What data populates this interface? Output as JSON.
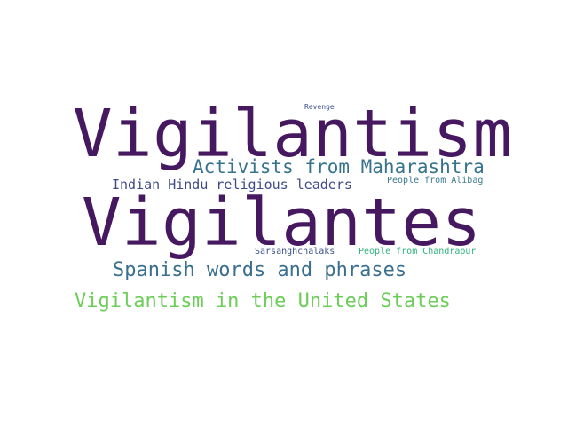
{
  "word_cloud": {
    "words": [
      {
        "text": "Revenge",
        "color": "#3b528b"
      },
      {
        "text": "Vigilantism",
        "color": "#46185f"
      },
      {
        "text": "Activists from Maharashtra",
        "color": "#37748c"
      },
      {
        "text": "Indian Hindu religious leaders",
        "color": "#3e4a89"
      },
      {
        "text": "People from Alibag",
        "color": "#3a7a8e"
      },
      {
        "text": "Vigilantes",
        "color": "#46185f"
      },
      {
        "text": "Sarsanghchalaks",
        "color": "#3b528b"
      },
      {
        "text": "People from Chandrapur",
        "color": "#2fb47c"
      },
      {
        "text": "Spanish words and phrases",
        "color": "#3a6f8f"
      },
      {
        "text": "Vigilantism in the United States",
        "color": "#6cce59"
      }
    ]
  }
}
